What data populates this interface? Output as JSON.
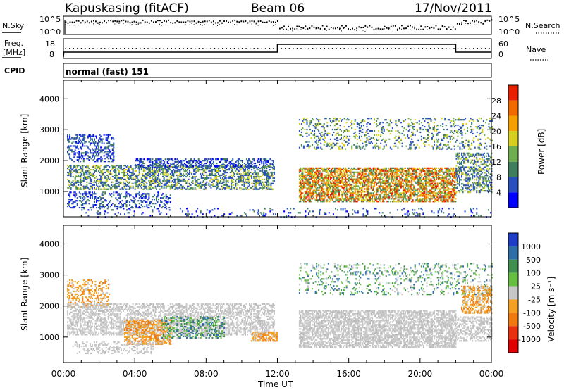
{
  "header": {
    "station": "Kapuskasing (fitACF)",
    "beam": "Beam 06",
    "date": "17/Nov/2011"
  },
  "labels": {
    "nsky": "N.Sky",
    "nsearch": "N.Search",
    "freq_line1": "Freq.",
    "freq_line2": "[MHz]",
    "nave": "Nave",
    "cpid": "CPID",
    "cpid_value": "normal (fast) 151"
  },
  "noise_axis": {
    "left_ticks": [
      "10^5",
      "10^0"
    ],
    "right_ticks": [
      "10^5",
      "10^0"
    ]
  },
  "freq_axis": {
    "left_ticks": [
      "18",
      "8"
    ],
    "right_ticks": [
      "60",
      "0"
    ]
  },
  "chart_data": [
    {
      "type": "heatmap",
      "name": "power",
      "ylabel": "Slant Range [km]",
      "xlabel": "Time UT",
      "x_ticks": [
        "00:00",
        "04:00",
        "08:00",
        "12:00",
        "16:00",
        "20:00",
        "00:00"
      ],
      "y_ticks": [
        1000,
        2000,
        3000,
        4000
      ],
      "ylim": [
        180,
        4600
      ],
      "xlim_hours": [
        0,
        24
      ],
      "colorbar": {
        "label": "Power [dB]",
        "ticks": [
          4,
          8,
          12,
          16,
          20,
          24,
          28
        ],
        "colors": [
          "#0000ff",
          "#2a4fbf",
          "#3f7f5f",
          "#6fae4f",
          "#d8d020",
          "#f5a000",
          "#f06a00",
          "#e82000"
        ]
      }
    },
    {
      "type": "heatmap",
      "name": "velocity",
      "ylabel": "Slant Range [km]",
      "xlabel": "Time UT",
      "x_ticks": [
        "00:00",
        "04:00",
        "08:00",
        "12:00",
        "16:00",
        "20:00",
        "00:00"
      ],
      "y_ticks": [
        1000,
        2000,
        3000,
        4000
      ],
      "ylim": [
        180,
        4600
      ],
      "xlim_hours": [
        0,
        24
      ],
      "colorbar": {
        "label": "Velocity [m s⁻¹]",
        "ticks": [
          1000,
          500,
          100,
          25,
          -25,
          -100,
          -500,
          -1000
        ],
        "colors": [
          "#1f3cc8",
          "#2e6ea8",
          "#3f8f4f",
          "#66c040",
          "#c8c8c8",
          "#f5a020",
          "#f07a10",
          "#e83010",
          "#e00000"
        ]
      }
    }
  ],
  "xaxis_title": "Time UT"
}
